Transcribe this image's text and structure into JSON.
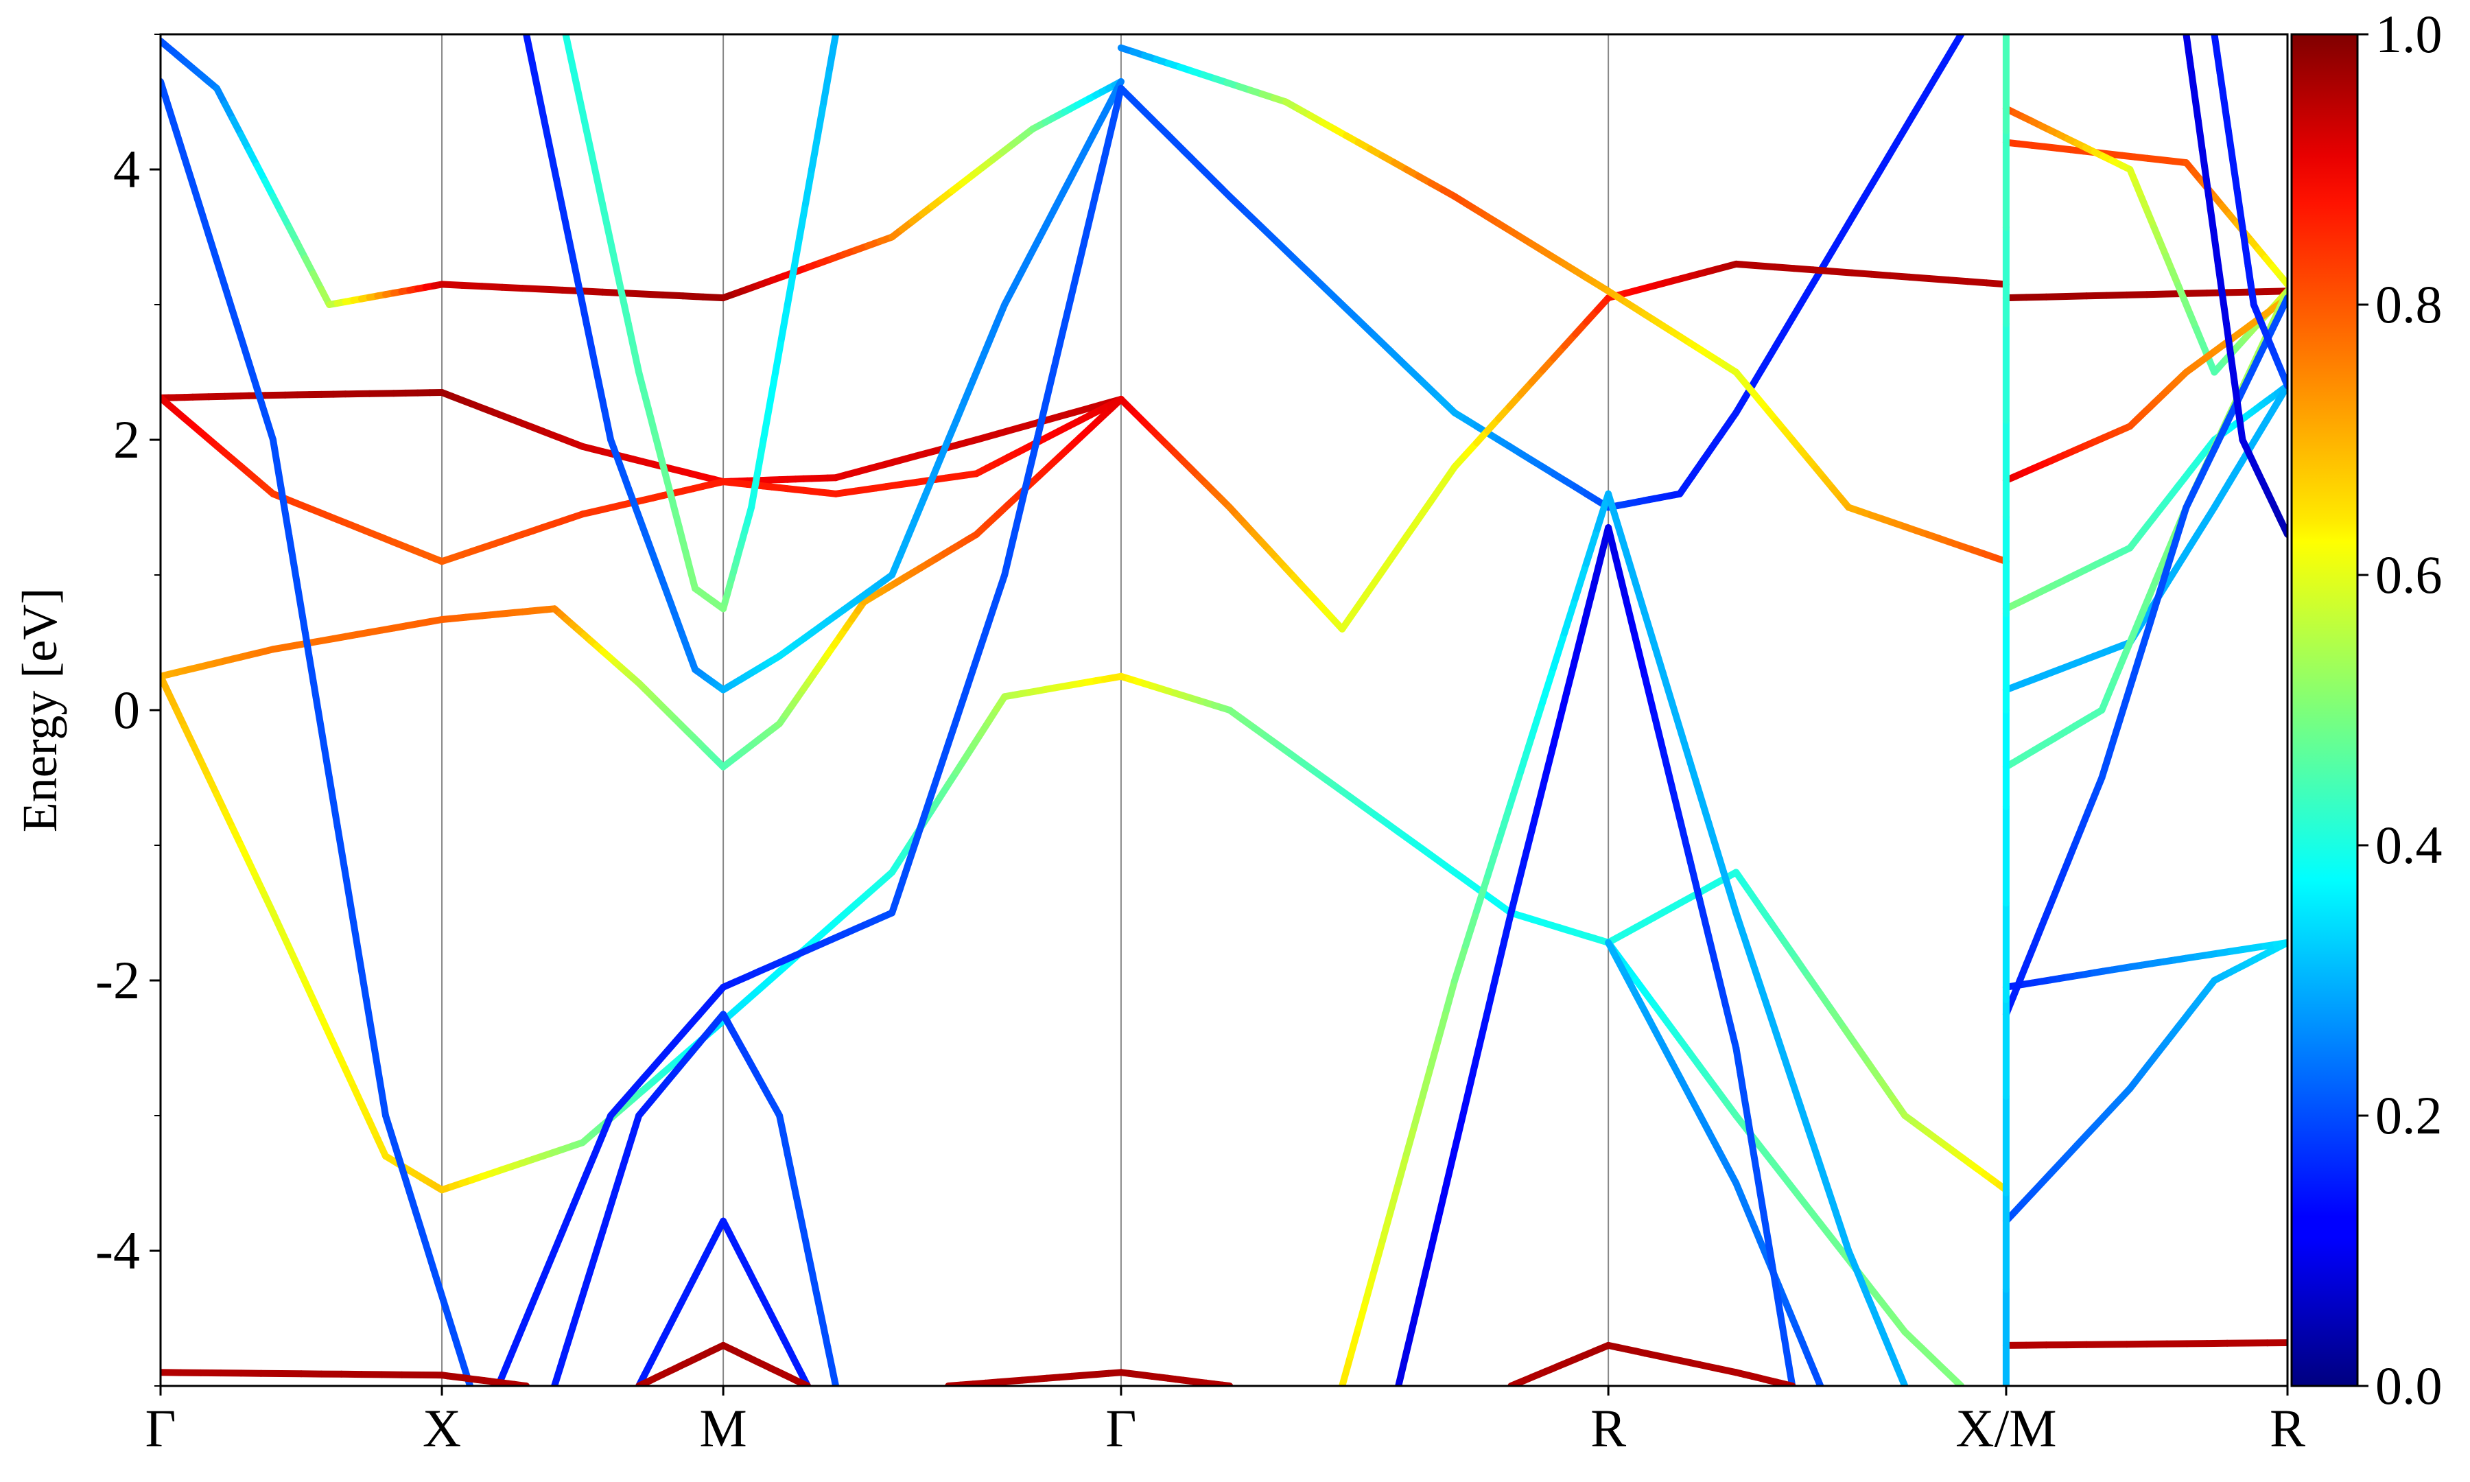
{
  "chart_data": {
    "type": "line",
    "title": "",
    "xlabel": "",
    "ylabel": "Energy [eV]",
    "ylim": [
      -5,
      5
    ],
    "y_ticks": [
      "-4",
      "-2",
      "0",
      "2",
      "4"
    ],
    "y_tick_values": [
      -4,
      -2,
      0,
      2,
      4
    ],
    "kpath": {
      "labels": [
        "Γ",
        "X",
        "M",
        "Γ",
        "R",
        "X/M",
        "R"
      ],
      "positions": [
        0,
        0.5,
        1.0,
        1.707,
        2.573,
        3.28,
        3.78
      ]
    },
    "colorbar": {
      "colormap": "jet",
      "range": [
        0.0,
        1.0
      ],
      "tick_labels": [
        "0.0",
        "0.2",
        "0.4",
        "0.6",
        "0.8",
        "1.0"
      ],
      "tick_values": [
        0.0,
        0.2,
        0.4,
        0.6,
        0.8,
        1.0
      ]
    },
    "series": [
      {
        "values": [
          [
            0,
            2.31,
            0.93
          ],
          [
            0.2,
            2.33,
            0.95
          ],
          [
            0.5,
            2.35,
            0.97
          ],
          [
            0.75,
            1.95,
            0.92
          ],
          [
            1.0,
            1.69,
            0.88
          ],
          [
            1.2,
            1.72,
            0.9
          ],
          [
            1.45,
            2.0,
            0.92
          ],
          [
            1.707,
            2.3,
            0.93
          ]
        ]
      },
      {
        "values": [
          [
            0,
            2.31,
            0.9
          ],
          [
            0.2,
            1.6,
            0.82
          ],
          [
            0.5,
            1.1,
            0.78
          ],
          [
            0.75,
            1.45,
            0.82
          ],
          [
            1.0,
            1.69,
            0.85
          ],
          [
            1.2,
            1.6,
            0.85
          ],
          [
            1.45,
            1.75,
            0.85
          ],
          [
            1.707,
            2.3,
            0.9
          ]
        ]
      },
      {
        "values": [
          [
            0,
            0.25,
            0.7
          ],
          [
            0.2,
            0.45,
            0.76
          ],
          [
            0.5,
            0.67,
            0.78
          ],
          [
            0.7,
            0.75,
            0.75
          ],
          [
            0.85,
            0.2,
            0.55
          ],
          [
            1.0,
            -0.42,
            0.45
          ],
          [
            1.1,
            -0.1,
            0.5
          ],
          [
            1.25,
            0.8,
            0.7
          ],
          [
            1.45,
            1.3,
            0.8
          ],
          [
            1.707,
            2.3,
            0.9
          ]
        ]
      },
      {
        "values": [
          [
            0,
            0.25,
            0.7
          ],
          [
            0.2,
            -1.5,
            0.6
          ],
          [
            0.4,
            -3.3,
            0.65
          ],
          [
            0.5,
            -3.55,
            0.68
          ],
          [
            0.75,
            -3.2,
            0.5
          ],
          [
            1.0,
            -2.3,
            0.35
          ],
          [
            1.3,
            -1.2,
            0.4
          ],
          [
            1.5,
            0.1,
            0.55
          ],
          [
            1.707,
            0.25,
            0.65
          ]
        ]
      },
      {
        "values": [
          [
            0,
            4.65,
            0.2
          ],
          [
            0.2,
            2.0,
            0.2
          ],
          [
            0.4,
            -3.0,
            0.2
          ],
          [
            0.55,
            -5.0,
            0.2
          ]
        ]
      },
      {
        "values": [
          [
            0,
            4.95,
            0.2
          ],
          [
            0.1,
            4.6,
            0.25
          ],
          [
            0.3,
            3.0,
            0.55
          ],
          [
            0.5,
            3.15,
            0.92
          ],
          [
            1.0,
            3.05,
            0.97
          ],
          [
            1.3,
            3.5,
            0.75
          ],
          [
            1.55,
            4.3,
            0.5
          ],
          [
            1.707,
            4.65,
            0.3
          ]
        ]
      },
      {
        "values": [
          [
            0.65,
            5.0,
            0.15
          ],
          [
            0.8,
            2.0,
            0.2
          ],
          [
            0.95,
            0.3,
            0.25
          ],
          [
            1.0,
            0.15,
            0.3
          ],
          [
            1.1,
            0.4,
            0.35
          ],
          [
            1.3,
            1.0,
            0.3
          ],
          [
            1.5,
            3.0,
            0.25
          ],
          [
            1.707,
            4.65,
            0.25
          ]
        ]
      },
      {
        "values": [
          [
            0.72,
            5.0,
            0.4
          ],
          [
            0.85,
            2.5,
            0.45
          ],
          [
            0.95,
            0.9,
            0.5
          ],
          [
            1.0,
            0.75,
            0.5
          ],
          [
            1.05,
            1.5,
            0.4
          ],
          [
            1.2,
            5.0,
            0.3
          ]
        ]
      },
      {
        "values": [
          [
            0.6,
            -5.0,
            0.15
          ],
          [
            0.8,
            -3.0,
            0.15
          ],
          [
            1.0,
            -2.05,
            0.15
          ],
          [
            1.3,
            -1.5,
            0.2
          ],
          [
            1.5,
            1.0,
            0.2
          ],
          [
            1.707,
            4.6,
            0.2
          ]
        ]
      },
      {
        "values": [
          [
            0.7,
            -5.0,
            0.15
          ],
          [
            0.85,
            -3.0,
            0.15
          ],
          [
            1.0,
            -2.25,
            0.18
          ],
          [
            1.1,
            -3.0,
            0.2
          ],
          [
            1.2,
            -5.0,
            0.2
          ]
        ]
      },
      {
        "values": [
          [
            0.85,
            -5.0,
            0.15
          ],
          [
            1.0,
            -3.78,
            0.15
          ],
          [
            1.15,
            -5.0,
            0.15
          ]
        ]
      },
      {
        "values": [
          [
            1.707,
            0.25,
            0.65
          ],
          [
            1.9,
            0.0,
            0.5
          ],
          [
            2.2,
            -0.9,
            0.4
          ],
          [
            2.4,
            -1.5,
            0.38
          ],
          [
            2.573,
            -1.72,
            0.4
          ],
          [
            2.8,
            -1.2,
            0.4
          ],
          [
            3.1,
            -3.0,
            0.55
          ],
          [
            3.28,
            -3.55,
            0.65
          ]
        ]
      },
      {
        "values": [
          [
            1.707,
            4.6,
            0.2
          ],
          [
            1.9,
            3.8,
            0.2
          ],
          [
            2.3,
            2.2,
            0.3
          ],
          [
            2.573,
            1.5,
            0.2
          ],
          [
            2.7,
            1.6,
            0.15
          ],
          [
            2.8,
            2.2,
            0.15
          ],
          [
            3.0,
            3.6,
            0.15
          ],
          [
            3.2,
            5.0,
            0.15
          ]
        ]
      },
      {
        "values": [
          [
            1.707,
            2.3,
            0.9
          ],
          [
            1.9,
            1.5,
            0.75
          ],
          [
            2.1,
            0.6,
            0.6
          ],
          [
            2.3,
            1.8,
            0.6
          ],
          [
            2.573,
            3.05,
            0.85
          ],
          [
            2.8,
            3.3,
            0.95
          ],
          [
            3.28,
            3.15,
            0.95
          ]
        ]
      },
      {
        "values": [
          [
            1.707,
            4.9,
            0.25
          ],
          [
            2.0,
            4.5,
            0.55
          ],
          [
            2.3,
            3.8,
            0.8
          ],
          [
            2.573,
            3.1,
            0.7
          ],
          [
            2.8,
            2.5,
            0.6
          ],
          [
            3.0,
            1.5,
            0.7
          ],
          [
            3.28,
            1.1,
            0.8
          ]
        ]
      },
      {
        "values": [
          [
            2.573,
            -1.72,
            0.35
          ],
          [
            2.8,
            -3.0,
            0.45
          ],
          [
            3.1,
            -4.6,
            0.5
          ],
          [
            3.2,
            -5.0,
            0.5
          ]
        ]
      },
      {
        "values": [
          [
            2.573,
            -1.72,
            0.3
          ],
          [
            2.8,
            -3.5,
            0.25
          ],
          [
            2.95,
            -5.0,
            0.2
          ]
        ]
      },
      {
        "values": [
          [
            2.1,
            -5.0,
            0.65
          ],
          [
            2.3,
            -2.0,
            0.5
          ],
          [
            2.573,
            1.6,
            0.3
          ],
          [
            2.8,
            -1.5,
            0.3
          ],
          [
            3.0,
            -4.0,
            0.3
          ],
          [
            3.1,
            -5.0,
            0.3
          ]
        ]
      },
      {
        "values": [
          [
            2.2,
            -5.0,
            0.1
          ],
          [
            2.4,
            -1.5,
            0.15
          ],
          [
            2.573,
            1.35,
            0.1
          ],
          [
            2.8,
            -2.5,
            0.2
          ],
          [
            2.9,
            -5.0,
            0.2
          ]
        ]
      },
      {
        "values": [
          [
            2.4,
            -5.0,
            0.95
          ],
          [
            2.573,
            -4.7,
            0.96
          ],
          [
            2.8,
            -4.9,
            0.95
          ],
          [
            2.9,
            -5.0,
            0.95
          ]
        ]
      },
      {
        "values": [
          [
            0,
            -4.9,
            0.95
          ],
          [
            0.5,
            -4.92,
            0.96
          ],
          [
            0.65,
            -5.0,
            0.95
          ]
        ]
      },
      {
        "values": [
          [
            0.85,
            -5.0,
            0.95
          ],
          [
            1.0,
            -4.7,
            0.96
          ],
          [
            1.15,
            -5.0,
            0.95
          ]
        ]
      },
      {
        "values": [
          [
            1.4,
            -5.0,
            0.95
          ],
          [
            1.707,
            -4.9,
            0.96
          ],
          [
            1.9,
            -5.0,
            0.95
          ]
        ]
      },
      {
        "values": [
          [
            3.28,
            3.05,
            0.97
          ],
          [
            3.78,
            3.1,
            0.95
          ]
        ]
      },
      {
        "values": [
          [
            3.28,
            4.2,
            0.82
          ],
          [
            3.6,
            4.05,
            0.8
          ],
          [
            3.78,
            3.15,
            0.6
          ]
        ]
      },
      {
        "values": [
          [
            3.28,
            4.45,
            0.8
          ],
          [
            3.5,
            4.0,
            0.6
          ],
          [
            3.65,
            2.5,
            0.45
          ],
          [
            3.78,
            3.1,
            0.6
          ]
        ]
      },
      {
        "values": [
          [
            3.28,
            1.7,
            0.9
          ],
          [
            3.5,
            2.1,
            0.8
          ],
          [
            3.6,
            2.5,
            0.75
          ],
          [
            3.78,
            3.05,
            0.7
          ]
        ]
      },
      {
        "values": [
          [
            3.28,
            0.75,
            0.5
          ],
          [
            3.5,
            1.2,
            0.45
          ],
          [
            3.65,
            2.0,
            0.4
          ],
          [
            3.78,
            2.4,
            0.3
          ]
        ]
      },
      {
        "values": [
          [
            3.28,
            0.15,
            0.3
          ],
          [
            3.5,
            0.5,
            0.3
          ],
          [
            3.65,
            1.5,
            0.3
          ],
          [
            3.78,
            2.4,
            0.3
          ]
        ]
      },
      {
        "values": [
          [
            3.28,
            -0.42,
            0.45
          ],
          [
            3.45,
            0.0,
            0.45
          ],
          [
            3.6,
            1.5,
            0.5
          ],
          [
            3.78,
            3.1,
            0.55
          ]
        ]
      },
      {
        "values": [
          [
            3.28,
            -2.05,
            0.15
          ],
          [
            3.5,
            -1.9,
            0.25
          ],
          [
            3.78,
            -1.72,
            0.35
          ]
        ]
      },
      {
        "values": [
          [
            3.28,
            -2.25,
            0.15
          ],
          [
            3.45,
            -0.5,
            0.2
          ],
          [
            3.6,
            1.5,
            0.2
          ],
          [
            3.78,
            3.05,
            0.2
          ]
        ]
      },
      {
        "values": [
          [
            3.28,
            -3.78,
            0.2
          ],
          [
            3.5,
            -2.8,
            0.25
          ],
          [
            3.65,
            -2.0,
            0.3
          ],
          [
            3.78,
            -1.72,
            0.35
          ]
        ]
      },
      {
        "values": [
          [
            3.28,
            -4.7,
            0.95
          ],
          [
            3.78,
            -4.68,
            0.95
          ]
        ]
      },
      {
        "values": [
          [
            3.6,
            5.0,
            0.1
          ],
          [
            3.7,
            2.0,
            0.1
          ],
          [
            3.78,
            1.3,
            0.05
          ]
        ]
      },
      {
        "values": [
          [
            3.65,
            5.0,
            0.15
          ],
          [
            3.72,
            3.0,
            0.15
          ],
          [
            3.78,
            2.4,
            0.2
          ]
        ]
      },
      {
        "values": [
          [
            3.28,
            -5.0,
            0.3
          ],
          [
            3.28,
            5.0,
            0.45
          ]
        ]
      }
    ]
  }
}
